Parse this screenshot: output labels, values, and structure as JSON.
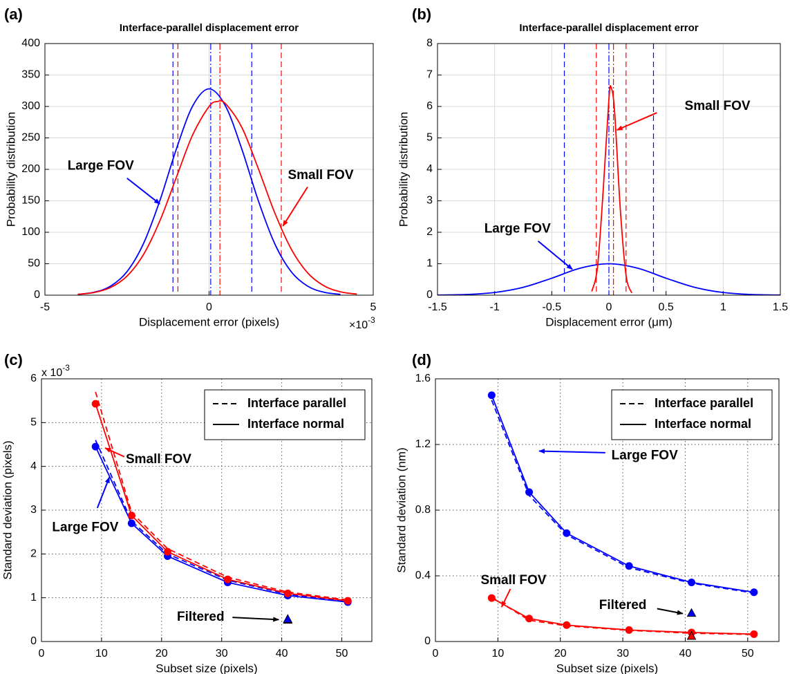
{
  "chart_data": [
    {
      "type": "line",
      "panel_label": "(a)",
      "title": "Interface-parallel displacement error",
      "xlabel": "Displacement error (pixels)",
      "ylabel": "Probability distribution",
      "x_multiplier": {
        "base": "×10",
        "exponent": "-3"
      },
      "xlim": [
        -5,
        5
      ],
      "ylim": [
        0,
        400
      ],
      "xticks": [
        -5,
        0,
        5
      ],
      "yticks": [
        0,
        50,
        100,
        150,
        200,
        250,
        300,
        350,
        400
      ],
      "grid": true,
      "grid_style": "solid",
      "series": [
        {
          "color": "#0000ff",
          "style": "solid",
          "smooth": true,
          "x": [
            -4,
            -3.5,
            -3,
            -2.5,
            -2,
            -1.5,
            -1,
            -0.5,
            0,
            0.5,
            1,
            1.5,
            2,
            2.5,
            3,
            3.5,
            4
          ],
          "values": [
            1.3,
            4.7,
            14.4,
            37.4,
            81.8,
            150.2,
            231.8,
            300.7,
            328,
            300.7,
            231.8,
            150.2,
            81.8,
            37.4,
            14.4,
            4.7,
            1.3
          ]
        },
        {
          "color": "#ff0000",
          "style": "solid",
          "smooth": true,
          "x": [
            -4,
            -3.5,
            -3,
            -2.5,
            -2,
            -1.5,
            -1,
            -0.5,
            0,
            0.25,
            0.5,
            1,
            1.5,
            2,
            2.5,
            3,
            3.5,
            4,
            4.5
          ],
          "values": [
            1.3,
            4.3,
            12.3,
            30.3,
            64.4,
            118.1,
            186.8,
            254.9,
            299.9,
            307.8,
            304.4,
            266.4,
            201.1,
            131.0,
            73.6,
            35.6,
            14.9,
            5.4,
            1.7
          ]
        }
      ],
      "vlines": [
        {
          "x": -1.1,
          "color": "#0000ff",
          "style": "dashed"
        },
        {
          "x": 1.3,
          "color": "#0000ff",
          "style": "dashed"
        },
        {
          "x": 0.05,
          "color": "#0000ff",
          "style": "dashdot"
        },
        {
          "x": -0.95,
          "color": "#ff0000",
          "style": "dashed"
        },
        {
          "x": 2.2,
          "color": "#ff0000",
          "style": "dashed"
        },
        {
          "x": 0.33,
          "color": "#ff0000",
          "style": "dashdot"
        }
      ],
      "annotations": [
        {
          "text": "Large FOV",
          "color": "#0000ff"
        },
        {
          "text": "Small FOV",
          "color": "#ff0000"
        }
      ]
    },
    {
      "type": "line",
      "panel_label": "(b)",
      "title": "Interface-parallel displacement error",
      "xlabel": "Displacement error (μm)",
      "ylabel": "Probability distribution",
      "xlim": [
        -1.5,
        1.5
      ],
      "ylim": [
        0,
        8
      ],
      "xticks": [
        -1.5,
        -1,
        -0.5,
        0,
        0.5,
        1,
        1.5
      ],
      "yticks": [
        0,
        1,
        2,
        3,
        4,
        5,
        6,
        7,
        8
      ],
      "grid": true,
      "grid_style": "solid",
      "series": [
        {
          "color": "#0000ff",
          "style": "solid",
          "smooth": true,
          "x": [
            -1.5,
            -1.25,
            -1,
            -0.75,
            -0.5,
            -0.25,
            0,
            0.25,
            0.5,
            0.75,
            1,
            1.25,
            1.5
          ],
          "values": [
            0.004,
            0.021,
            0.085,
            0.25,
            0.54,
            0.86,
            1,
            0.86,
            0.54,
            0.25,
            0.085,
            0.021,
            0.004
          ]
        },
        {
          "color": "#ff0000",
          "style": "solid",
          "smooth": true,
          "x": [
            -0.15,
            -0.1,
            -0.05,
            0,
            0.02,
            0.05,
            0.1,
            0.15,
            0.2
          ],
          "values": [
            0.12,
            0.89,
            3.34,
            6.24,
            6.6,
            5.82,
            2.71,
            0.63,
            0.07
          ]
        }
      ],
      "vlines": [
        {
          "x": -0.39,
          "color": "#0000ff",
          "style": "dashed"
        },
        {
          "x": 0.39,
          "color": "#0000ff",
          "style": "dashed"
        },
        {
          "x": 0,
          "color": "#0000ff",
          "style": "dashdot"
        },
        {
          "x": -0.11,
          "color": "#ff0000",
          "style": "dashed"
        },
        {
          "x": 0.15,
          "color": "#ff0000",
          "style": "dashed"
        },
        {
          "x": 0.04,
          "color": "#ff0000",
          "style": "dashdot"
        }
      ],
      "annotations": [
        {
          "text": "Small FOV",
          "color": "#ff0000"
        },
        {
          "text": "Large FOV",
          "color": "#0000ff"
        }
      ]
    },
    {
      "type": "line",
      "panel_label": "(c)",
      "xlabel": "Subset size (pixels)",
      "ylabel": "Standard deviation (pixels)",
      "y_multiplier": {
        "base": "x 10",
        "exponent": "-3"
      },
      "xlim": [
        0,
        55
      ],
      "ylim": [
        0,
        6
      ],
      "xticks": [
        0,
        10,
        20,
        30,
        40,
        50
      ],
      "yticks": [
        0,
        1,
        2,
        3,
        4,
        5,
        6
      ],
      "grid": true,
      "grid_style": "dotted",
      "series": [
        {
          "color": "#0000ff",
          "style": "dashed",
          "x": [
            9,
            15,
            21,
            31,
            41,
            51
          ],
          "values": [
            4.6,
            2.75,
            2.0,
            1.4,
            1.08,
            0.92
          ]
        },
        {
          "color": "#ff0000",
          "style": "dashed",
          "x": [
            9,
            15,
            21,
            31,
            41,
            51
          ],
          "values": [
            5.7,
            2.95,
            2.12,
            1.47,
            1.13,
            0.95
          ]
        },
        {
          "color": "#0000ff",
          "style": "solid",
          "marker": "circle",
          "x": [
            9,
            15,
            21,
            31,
            41,
            51
          ],
          "values": [
            4.45,
            2.7,
            1.95,
            1.35,
            1.05,
            0.9
          ]
        },
        {
          "color": "#ff0000",
          "style": "solid",
          "marker": "circle",
          "x": [
            9,
            15,
            21,
            31,
            41,
            51
          ],
          "values": [
            5.43,
            2.88,
            2.05,
            1.42,
            1.1,
            0.93
          ]
        },
        {
          "color": "#ff0000",
          "style": "none",
          "marker": "triangle",
          "x": [
            41
          ],
          "values": [
            0.48
          ]
        },
        {
          "color": "#0000ff",
          "style": "none",
          "marker": "triangle",
          "x": [
            41
          ],
          "values": [
            0.5
          ]
        }
      ],
      "legend": [
        {
          "label": "Interface parallel",
          "style": "dashed"
        },
        {
          "label": "Interface normal",
          "style": "solid"
        }
      ],
      "annotations": [
        {
          "text": "Small FOV",
          "color": "#ff0000"
        },
        {
          "text": "Large FOV",
          "color": "#0000ff"
        },
        {
          "text": "Filtered",
          "color": "#000000"
        }
      ]
    },
    {
      "type": "line",
      "panel_label": "(d)",
      "xlabel": "Subset size (pixels)",
      "ylabel": "Standard deviation (nm)",
      "xlim": [
        0,
        55
      ],
      "ylim": [
        0,
        1.6
      ],
      "xticks": [
        0,
        10,
        20,
        30,
        40,
        50
      ],
      "yticks": [
        0,
        0.4,
        0.8,
        1.2,
        1.6
      ],
      "grid": true,
      "grid_style": "dotted",
      "series": [
        {
          "color": "#0000ff",
          "style": "dashed",
          "x": [
            9,
            15,
            21,
            31,
            41,
            51
          ],
          "values": [
            1.47,
            0.89,
            0.65,
            0.45,
            0.355,
            0.295
          ]
        },
        {
          "color": "#ff0000",
          "style": "dashed",
          "x": [
            9,
            15,
            21,
            31,
            41,
            51
          ],
          "values": [
            0.27,
            0.13,
            0.095,
            0.068,
            0.05,
            0.043
          ]
        },
        {
          "color": "#0000ff",
          "style": "solid",
          "marker": "circle",
          "x": [
            9,
            15,
            21,
            31,
            41,
            51
          ],
          "values": [
            1.5,
            0.91,
            0.66,
            0.46,
            0.36,
            0.3
          ]
        },
        {
          "color": "#ff0000",
          "style": "solid",
          "marker": "circle",
          "x": [
            9,
            15,
            21,
            31,
            41,
            51
          ],
          "values": [
            0.265,
            0.14,
            0.1,
            0.07,
            0.055,
            0.045
          ]
        },
        {
          "color": "#ff0000",
          "style": "none",
          "marker": "triangle",
          "x": [
            41
          ],
          "values": [
            0.03
          ]
        },
        {
          "color": "#0000ff",
          "style": "none",
          "marker": "triangle",
          "x": [
            41
          ],
          "values": [
            0.17
          ]
        }
      ],
      "legend": [
        {
          "label": "Interface parallel",
          "style": "dashed"
        },
        {
          "label": "Interface normal",
          "style": "solid"
        }
      ],
      "annotations": [
        {
          "text": "Large FOV",
          "color": "#0000ff"
        },
        {
          "text": "Small FOV",
          "color": "#ff0000"
        },
        {
          "text": "Filtered",
          "color": "#000000"
        }
      ]
    }
  ]
}
